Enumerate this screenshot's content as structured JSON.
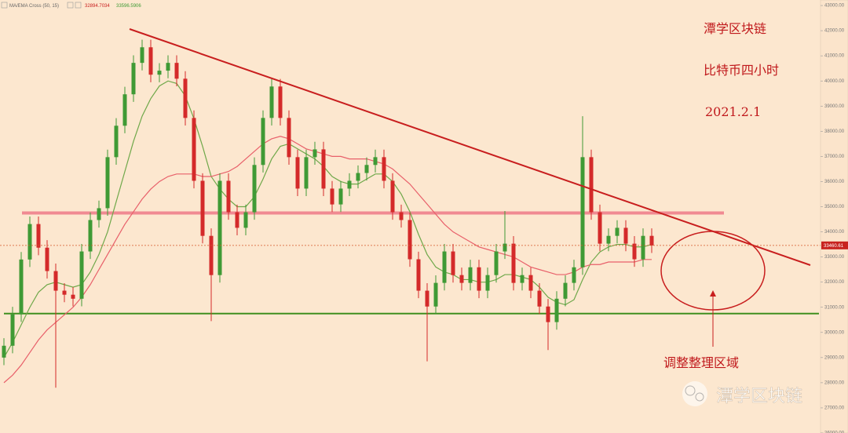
{
  "chart_data": {
    "type": "candlestick",
    "title": "潭学区块链",
    "subtitle": "比特币四小时",
    "date": "2021.2.1",
    "annotation": "调整整理区域",
    "watermark": "潭学区块链",
    "indicator": "MA/EMA Cross (50, 15)",
    "indicator_values": [
      32894.7034,
      33596.5906
    ],
    "current_price": 33460.61,
    "up_color": "#3f9a35",
    "down_color": "#d42a2a",
    "open": [
      29000,
      29470,
      30720,
      32900,
      34310,
      33370,
      32440,
      31660,
      31500,
      31340,
      33220,
      34470,
      34940,
      36970,
      38220,
      39470,
      40720,
      41340,
      40250,
      40410,
      40720,
      40090,
      38530,
      36030,
      33840,
      32280,
      36030,
      34780,
      34160,
      34780,
      36660,
      38530,
      39780,
      38530,
      36970,
      35720,
      36970,
      37280,
      35720,
      35090,
      35720,
      36030,
      36340,
      36660,
      36970,
      36030,
      34780,
      34470,
      32910,
      31660,
      31030,
      31970,
      33220,
      32280,
      31970,
      32590,
      31660,
      32280,
      33220,
      33530,
      31970,
      32280,
      31660,
      31030,
      30410,
      31340,
      31970,
      32590,
      36970,
      34780,
      33530,
      33840,
      34160,
      33530,
      32910,
      33840
    ],
    "high": [
      29770,
      31020,
      33200,
      34610,
      34610,
      33670,
      32740,
      31960,
      31800,
      33520,
      34770,
      35240,
      37270,
      38520,
      39770,
      41020,
      41640,
      41640,
      40710,
      41020,
      41020,
      40390,
      38830,
      36330,
      34140,
      36330,
      36330,
      35080,
      35080,
      36960,
      38830,
      40080,
      40080,
      38830,
      37270,
      37270,
      37580,
      37580,
      36020,
      36020,
      36330,
      36640,
      36960,
      37270,
      37270,
      36330,
      35080,
      34770,
      33210,
      31960,
      32270,
      33520,
      33520,
      32580,
      32890,
      32890,
      32580,
      33520,
      34830,
      33830,
      32580,
      32580,
      31960,
      31330,
      31640,
      32270,
      32890,
      38600,
      37270,
      35080,
      34140,
      34460,
      34460,
      33830,
      34140,
      34140
    ],
    "low": [
      28700,
      29170,
      30420,
      32600,
      33070,
      32140,
      27800,
      31200,
      31040,
      31040,
      32920,
      34170,
      34640,
      36670,
      37920,
      39170,
      40420,
      39950,
      39950,
      40110,
      39790,
      38230,
      35730,
      33540,
      30450,
      31980,
      34480,
      33860,
      33860,
      34480,
      36360,
      38230,
      38230,
      36670,
      35420,
      35420,
      36670,
      35420,
      34790,
      34790,
      35420,
      35730,
      36040,
      36360,
      35730,
      34480,
      34170,
      32610,
      31360,
      28850,
      30730,
      31670,
      31980,
      31670,
      31670,
      31360,
      31360,
      31980,
      32920,
      31670,
      31670,
      31360,
      30730,
      29300,
      30110,
      31040,
      31670,
      32290,
      34480,
      33230,
      33230,
      33540,
      33230,
      32610,
      32610,
      33160
    ],
    "close": [
      29470,
      30720,
      32900,
      34310,
      33370,
      32440,
      31660,
      31500,
      31340,
      33220,
      34470,
      34940,
      36970,
      38220,
      39470,
      40720,
      41340,
      40250,
      40410,
      40720,
      40090,
      38530,
      36030,
      33840,
      32280,
      36030,
      34780,
      34160,
      34780,
      36660,
      38530,
      39780,
      38530,
      36970,
      35720,
      36970,
      37280,
      35720,
      35090,
      35720,
      36030,
      36340,
      36660,
      36970,
      36030,
      34780,
      34470,
      32910,
      31660,
      31030,
      31970,
      33220,
      32280,
      31970,
      32590,
      31660,
      32280,
      33220,
      33530,
      31970,
      32280,
      31660,
      31030,
      30410,
      31340,
      31970,
      32590,
      36970,
      34780,
      33530,
      33840,
      34160,
      33530,
      32910,
      33840,
      33460
    ],
    "ma_lines": [
      {
        "color": "#6fa84a",
        "values": [
          29000,
          29600,
          30300,
          31000,
          31600,
          31900,
          32000,
          31900,
          31800,
          31900,
          32400,
          33100,
          34000,
          35200,
          36400,
          37600,
          38600,
          39300,
          39800,
          40000,
          39900,
          39400,
          38500,
          37400,
          36200,
          35700,
          35300,
          35000,
          35000,
          35400,
          36100,
          36900,
          37400,
          37500,
          37300,
          37100,
          36900,
          36600,
          36200,
          36000,
          35900,
          35900,
          36100,
          36300,
          36300,
          36000,
          35500,
          34800,
          33900,
          33100,
          32600,
          32400,
          32300,
          32100,
          32100,
          32000,
          32000,
          32100,
          32300,
          32300,
          32200,
          32100,
          31800,
          31400,
          31200,
          31100,
          31300,
          32100,
          32800,
          33200,
          33400,
          33500,
          33500,
          33400,
          33400,
          33500
        ]
      },
      {
        "color": "#e8606a",
        "values": [
          28000,
          28300,
          28700,
          29200,
          29700,
          30100,
          30400,
          30700,
          31000,
          31400,
          31900,
          32500,
          33100,
          33700,
          34300,
          34800,
          35300,
          35700,
          36000,
          36200,
          36300,
          36300,
          36300,
          36200,
          36200,
          36300,
          36400,
          36600,
          36900,
          37200,
          37500,
          37700,
          37800,
          37700,
          37500,
          37300,
          37200,
          37100,
          37000,
          37000,
          36900,
          36900,
          36900,
          36800,
          36700,
          36500,
          36200,
          35900,
          35500,
          35100,
          34700,
          34300,
          34000,
          33800,
          33600,
          33400,
          33300,
          33200,
          33100,
          33000,
          32800,
          32600,
          32500,
          32400,
          32300,
          32300,
          32400,
          32600,
          32700,
          32700,
          32800,
          32800,
          32800,
          32800,
          32900,
          32900
        ]
      }
    ],
    "levels": [
      {
        "value": 34750,
        "color": "#f08a92"
      },
      {
        "value": 30750,
        "color": "#3f8f1f"
      }
    ],
    "ylim": [
      26000,
      43220
    ],
    "yticks": [
      {
        "value": 26000,
        "label": "26000.00"
      },
      {
        "value": 27000,
        "label": "27000.00"
      },
      {
        "value": 28000,
        "label": "28000.00"
      },
      {
        "value": 29000,
        "label": "29000.00"
      },
      {
        "value": 30000,
        "label": "30000.00"
      },
      {
        "value": 31000,
        "label": "31000.00"
      },
      {
        "value": 32000,
        "label": "32000.00"
      },
      {
        "value": 33000,
        "label": "33000.00"
      },
      {
        "value": 34000,
        "label": "34000.00"
      },
      {
        "value": 35000,
        "label": "35000.00"
      },
      {
        "value": 36000,
        "label": "36000.00"
      },
      {
        "value": 37000,
        "label": "37000.00"
      },
      {
        "value": 38000,
        "label": "38000.00"
      },
      {
        "value": 39000,
        "label": "39000.00"
      },
      {
        "value": 40000,
        "label": "40000.00"
      },
      {
        "value": 41000,
        "label": "41000.00"
      },
      {
        "value": 42000,
        "label": "42000.00"
      },
      {
        "value": 43000,
        "label": "43000.00"
      }
    ]
  }
}
